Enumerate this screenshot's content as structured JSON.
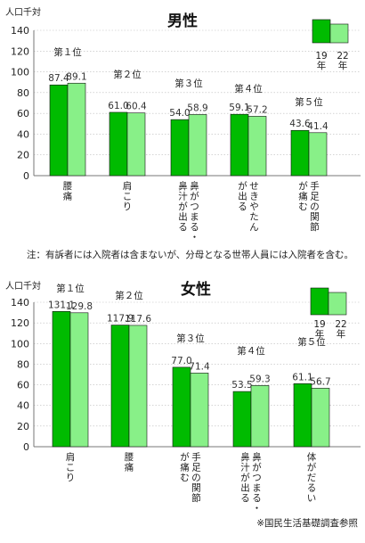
{
  "note": "注：有訴者には入院者は含まないが、分母となる世帯人員には入院者を含む。",
  "source": "※国民生活基礎調査参照",
  "colors": {
    "y19": "#00bb00",
    "y22": "#88f088",
    "edge": "#111111",
    "axis": "#777777",
    "grid": "#bbbbbb"
  },
  "chart_data": [
    {
      "type": "bar",
      "title": "男性",
      "ylabel": "人口千対",
      "ylim": [
        0,
        140
      ],
      "yticks": [
        0,
        20,
        40,
        60,
        80,
        100,
        120,
        140
      ],
      "legend": {
        "position": "top-right",
        "labels": [
          "19年",
          "22年"
        ]
      },
      "categories": [
        "腰痛",
        "肩こり",
        "鼻がつまる・鼻汁が出る",
        "せきやたんが出る",
        "手足の関節が痛む"
      ],
      "category_lines": [
        [
          "腰痛"
        ],
        [
          "肩こり"
        ],
        [
          "鼻がつまる・",
          "鼻汁が出る"
        ],
        [
          "せきやたん",
          "が出る"
        ],
        [
          "手足の関節",
          "が痛む"
        ]
      ],
      "ranks": [
        "第１位",
        "第２位",
        "第３位",
        "第４位",
        "第５位"
      ],
      "series": [
        {
          "name": "19年",
          "values": [
            87.4,
            61.0,
            54.0,
            59.1,
            43.6
          ]
        },
        {
          "name": "22年",
          "values": [
            89.1,
            60.4,
            58.9,
            57.2,
            41.4
          ]
        }
      ],
      "value_labels": [
        [
          "87.4",
          "61.0",
          "54.0",
          "59.1",
          "43.6"
        ],
        [
          "89.1",
          "60.4",
          "58.9",
          "57.2",
          "41.4"
        ]
      ]
    },
    {
      "type": "bar",
      "title": "女性",
      "ylabel": "人口千対",
      "ylim": [
        0,
        140
      ],
      "yticks": [
        0,
        20,
        40,
        60,
        80,
        100,
        120,
        140
      ],
      "legend": {
        "position": "top-right",
        "labels": [
          "19年",
          "22年"
        ]
      },
      "categories": [
        "肩こり",
        "腰痛",
        "手足の関節が痛む",
        "鼻がつまる・鼻汁が出る",
        "体がだるい"
      ],
      "category_lines": [
        [
          "肩こり"
        ],
        [
          "腰痛"
        ],
        [
          "手足の関節",
          "が痛む"
        ],
        [
          "鼻がつまる・",
          "鼻汁が出る"
        ],
        [
          "体がだるい"
        ]
      ],
      "ranks": [
        "第１位",
        "第２位",
        "第３位",
        "第４位",
        "第５位"
      ],
      "series": [
        {
          "name": "19年",
          "values": [
            131.1,
            117.9,
            77.0,
            53.5,
            61.1
          ]
        },
        {
          "name": "22年",
          "values": [
            129.8,
            117.6,
            71.4,
            59.3,
            56.7
          ]
        }
      ],
      "value_labels": [
        [
          "131.1",
          "117.9",
          "77.0",
          "53.5",
          "61.1"
        ],
        [
          "129.8",
          "117.6",
          "71.4",
          "59.3",
          "56.7"
        ]
      ]
    }
  ]
}
